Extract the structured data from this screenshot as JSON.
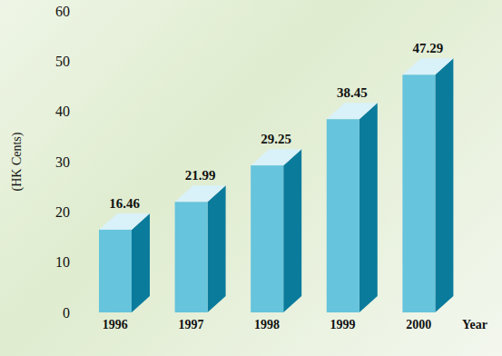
{
  "chart_data": {
    "type": "bar",
    "y_label": "(HK Cents)",
    "x_label": "Year",
    "categories": [
      "1996",
      "1997",
      "1998",
      "1999",
      "2000"
    ],
    "values": [
      16.46,
      21.99,
      29.25,
      38.45,
      47.29
    ],
    "color": "#66c4dc",
    "ylim": [
      0,
      60
    ],
    "yticks": [
      0,
      10,
      20,
      30,
      40,
      50,
      60
    ],
    "grid": false,
    "data_labels": true
  }
}
